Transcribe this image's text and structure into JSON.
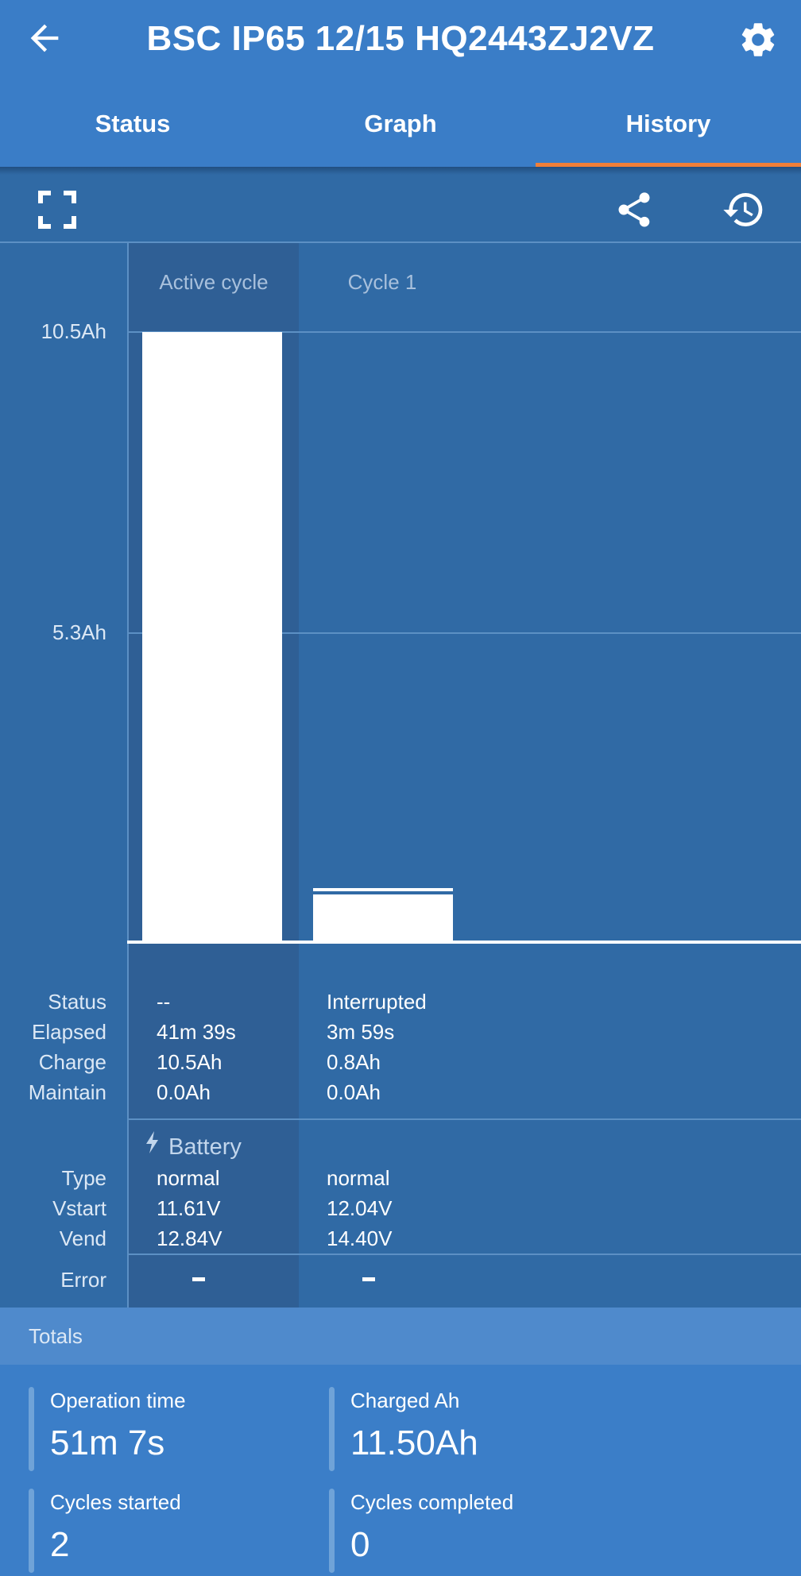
{
  "app_bar": {
    "title": "BSC IP65 12/15 HQ2443ZJ2VZ",
    "back_icon": "arrow-left-icon",
    "settings_icon": "gear-icon",
    "tabs": [
      {
        "label": "Status",
        "selected": false
      },
      {
        "label": "Graph",
        "selected": false
      },
      {
        "label": "History",
        "selected": true
      }
    ],
    "accent_color": "#f07f38"
  },
  "toolbar": {
    "icons": [
      "fullscreen-icon",
      "share-icon",
      "history-icon"
    ]
  },
  "chart_data": {
    "type": "bar",
    "categories": [
      "Active cycle",
      "Cycle 1"
    ],
    "values": [
      10.5,
      0.8
    ],
    "y_ticks": [
      "10.5Ah",
      "5.3Ah"
    ],
    "ylim": [
      0,
      10.5
    ],
    "grid": true
  },
  "details": {
    "row_labels": {
      "status": "Status",
      "elapsed": "Elapsed",
      "charge": "Charge",
      "maintain": "Maintain",
      "battery_heading": "Battery",
      "type": "Type",
      "vstart": "Vstart",
      "vend": "Vend",
      "error": "Error"
    },
    "cycles": [
      {
        "status": "--",
        "elapsed": "41m 39s",
        "charge": "10.5Ah",
        "maintain": "0.0Ah",
        "type": "normal",
        "vstart": "11.61V",
        "vend": "12.84V",
        "error": "-"
      },
      {
        "status": "Interrupted",
        "elapsed": "3m 59s",
        "charge": "0.8Ah",
        "maintain": "0.0Ah",
        "type": "normal",
        "vstart": "12.04V",
        "vend": "14.40V",
        "error": "-"
      }
    ]
  },
  "totals": {
    "heading": "Totals",
    "operation_time": {
      "label": "Operation time",
      "value": "51m 7s"
    },
    "charged_ah": {
      "label": "Charged Ah",
      "value": "11.50Ah"
    },
    "cycles_started": {
      "label": "Cycles started",
      "value": "2"
    },
    "cycles_completed": {
      "label": "Cycles completed",
      "value": "0"
    }
  }
}
